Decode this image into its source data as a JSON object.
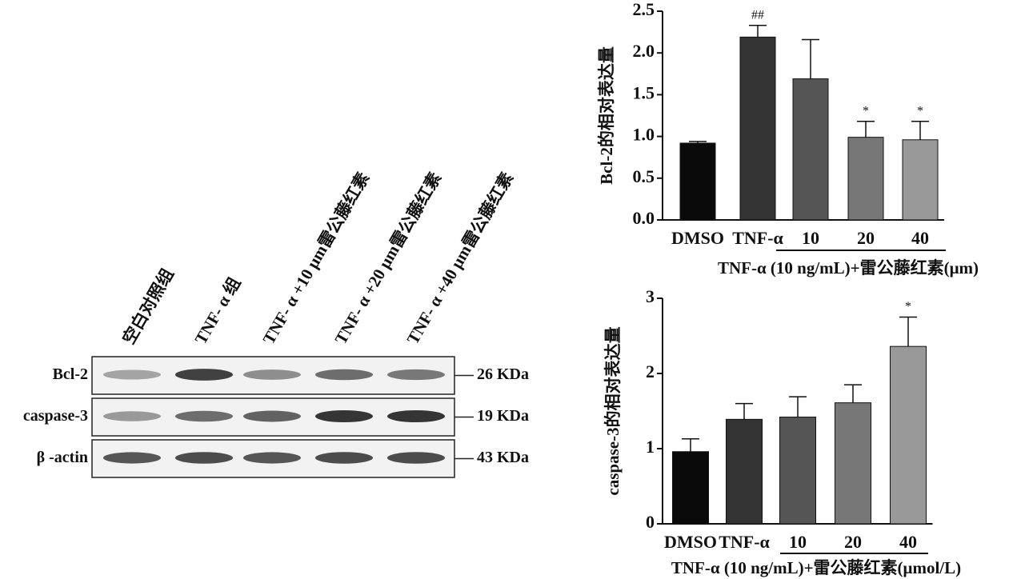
{
  "blot": {
    "lanes": [
      "空白对照组",
      "TNF- α 组",
      "TNF- α +10 μm雷公藤红素",
      "TNF- α +20 μm雷公藤红素",
      "TNF- α +40 μm雷公藤红素"
    ],
    "rows": [
      {
        "label": "Bcl-2",
        "size": "26 KDa"
      },
      {
        "label": "caspase-3",
        "size": "19 KDa"
      },
      {
        "label": "β -actin",
        "size": "43 KDa"
      }
    ]
  },
  "chart_data": [
    {
      "type": "bar",
      "ylabel": "Bcl-2的相对表达量",
      "xlabel": "TNF-α (10 ng/mL)+雷公藤红素(μm)",
      "categories": [
        "DMSO",
        "TNF-α",
        "10",
        "20",
        "40"
      ],
      "values": [
        0.92,
        2.19,
        1.69,
        0.99,
        0.96
      ],
      "errors": [
        0.02,
        0.14,
        0.47,
        0.19,
        0.22
      ],
      "annotations": [
        null,
        "##",
        null,
        "*",
        "*"
      ],
      "colors": [
        "#0a0a0a",
        "#333333",
        "#555555",
        "#777777",
        "#999999"
      ],
      "ylim": [
        0,
        2.5
      ],
      "yticks": [
        {
          "value": 0,
          "label": "0.0"
        },
        0.5,
        {
          "value": 1,
          "label": "1.0"
        },
        1.5,
        {
          "value": 2,
          "label": "2.0"
        },
        2.5
      ]
    },
    {
      "type": "bar",
      "ylabel": "caspase-3的相对表达量",
      "xlabel": "TNF-α (10 ng/mL)+雷公藤红素(μmol/L)",
      "categories": [
        "DMSO",
        "TNF-α",
        "10",
        "20",
        "40"
      ],
      "values": [
        0.96,
        1.39,
        1.42,
        1.61,
        2.36
      ],
      "errors": [
        0.17,
        0.21,
        0.27,
        0.24,
        0.39
      ],
      "annotations": [
        null,
        null,
        null,
        null,
        "*"
      ],
      "colors": [
        "#0a0a0a",
        "#333333",
        "#555555",
        "#777777",
        "#999999"
      ],
      "ylim": [
        0,
        3
      ],
      "yticks": [
        0,
        1,
        2,
        3
      ]
    }
  ]
}
